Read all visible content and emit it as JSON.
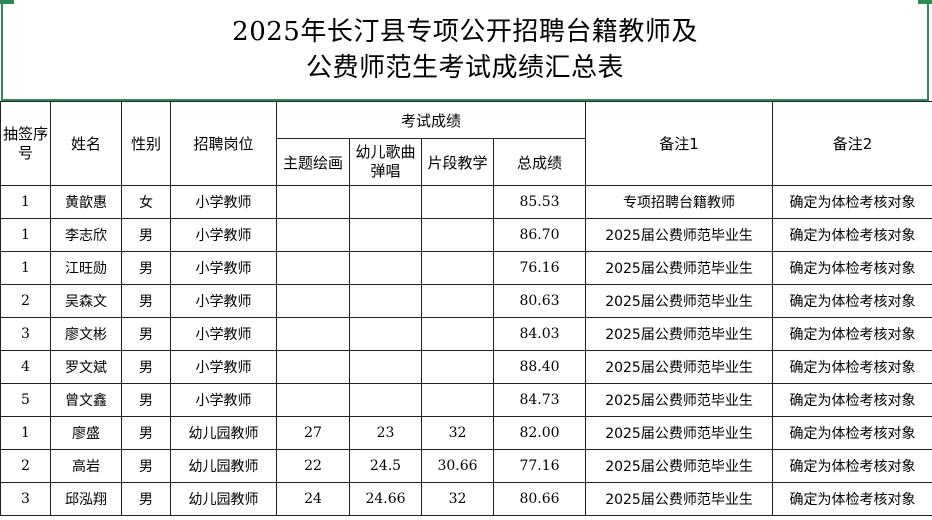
{
  "title": {
    "line1": "2025年长汀县专项公开招聘台籍教师及",
    "line2": "公费师范生考试成绩汇总表"
  },
  "colors": {
    "title_border": "#2e8b57",
    "grid": "#222222"
  },
  "headers": {
    "draw_no": "抽签序号",
    "name": "姓名",
    "gender": "性别",
    "position": "招聘岗位",
    "exam_scores": "考试成绩",
    "theme_drawing": "主题绘画",
    "song_singing": "幼儿歌曲弹唱",
    "segment_teaching": "片段教学",
    "total": "总成绩",
    "remark1": "备注1",
    "remark2": "备注2"
  },
  "rows": [
    {
      "no": "1",
      "name": "黄歆惠",
      "gender": "女",
      "position": "小学教师",
      "drawing": "",
      "singing": "",
      "teaching": "",
      "total": "85.53",
      "remark1": "专项招聘台籍教师",
      "remark2": "确定为体检考核对象"
    },
    {
      "no": "1",
      "name": "李志欣",
      "gender": "男",
      "position": "小学教师",
      "drawing": "",
      "singing": "",
      "teaching": "",
      "total": "86.70",
      "remark1": "2025届公费师范毕业生",
      "remark2": "确定为体检考核对象"
    },
    {
      "no": "1",
      "name": "江旺勋",
      "gender": "男",
      "position": "小学教师",
      "drawing": "",
      "singing": "",
      "teaching": "",
      "total": "76.16",
      "remark1": "2025届公费师范毕业生",
      "remark2": "确定为体检考核对象"
    },
    {
      "no": "2",
      "name": "吴森文",
      "gender": "男",
      "position": "小学教师",
      "drawing": "",
      "singing": "",
      "teaching": "",
      "total": "80.63",
      "remark1": "2025届公费师范毕业生",
      "remark2": "确定为体检考核对象"
    },
    {
      "no": "3",
      "name": "廖文彬",
      "gender": "男",
      "position": "小学教师",
      "drawing": "",
      "singing": "",
      "teaching": "",
      "total": "84.03",
      "remark1": "2025届公费师范毕业生",
      "remark2": "确定为体检考核对象"
    },
    {
      "no": "4",
      "name": "罗文斌",
      "gender": "男",
      "position": "小学教师",
      "drawing": "",
      "singing": "",
      "teaching": "",
      "total": "88.40",
      "remark1": "2025届公费师范毕业生",
      "remark2": "确定为体检考核对象"
    },
    {
      "no": "5",
      "name": "曾文鑫",
      "gender": "男",
      "position": "小学教师",
      "drawing": "",
      "singing": "",
      "teaching": "",
      "total": "84.73",
      "remark1": "2025届公费师范毕业生",
      "remark2": "确定为体检考核对象"
    },
    {
      "no": "1",
      "name": "廖盛",
      "gender": "男",
      "position": "幼儿园教师",
      "drawing": "27",
      "singing": "23",
      "teaching": "32",
      "total": "82.00",
      "remark1": "2025届公费师范毕业生",
      "remark2": "确定为体检考核对象"
    },
    {
      "no": "2",
      "name": "高岩",
      "gender": "男",
      "position": "幼儿园教师",
      "drawing": "22",
      "singing": "24.5",
      "teaching": "30.66",
      "total": "77.16",
      "remark1": "2025届公费师范毕业生",
      "remark2": "确定为体检考核对象"
    },
    {
      "no": "3",
      "name": "邱泓翔",
      "gender": "男",
      "position": "幼儿园教师",
      "drawing": "24",
      "singing": "24.66",
      "teaching": "32",
      "total": "80.66",
      "remark1": "2025届公费师范毕业生",
      "remark2": "确定为体检考核对象"
    }
  ]
}
